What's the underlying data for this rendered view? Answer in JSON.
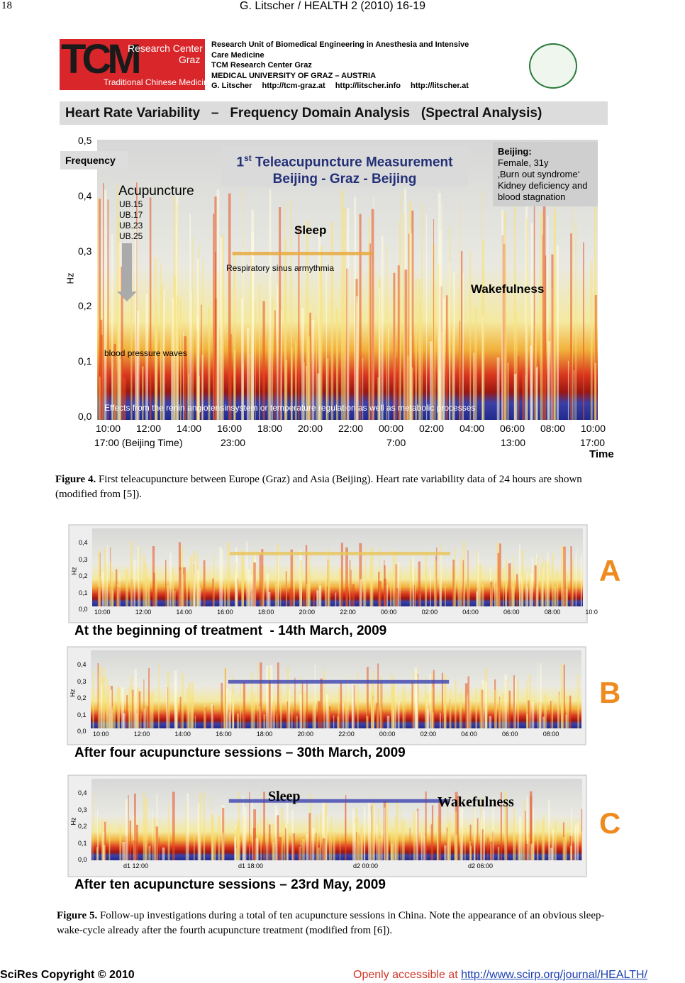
{
  "header": {
    "page_number": "18",
    "running_title": "G. Litscher / HEALTH 2 (2010) 16-19"
  },
  "figure4": {
    "banner": {
      "logo": "TCM",
      "center_line1": "Research Center",
      "center_line2": "Graz",
      "logo_subtitle": "Traditional Chinese Medicine",
      "lines": [
        "Research Unit of Biomedical Engineering in Anesthesia and Intensive",
        "Care Medicine",
        "TCM Research Center Graz",
        "MEDICAL UNIVERSITY OF GRAZ – AUSTRIA"
      ],
      "author": "G. Litscher",
      "links": [
        "http://tcm-graz.at",
        "http://litscher.info",
        "http://litscher.at"
      ]
    },
    "title": "Heart Rate Variability   –   Frequency Domain Analysis   (Spectral Analysis)",
    "frequency_label": "Frequency",
    "panel_title": {
      "number": "1",
      "suffix": "st",
      "line1": " Teleacupuncture Measurement",
      "line2": "Beijing - Graz - Beijing"
    },
    "patient": [
      "Beijing:",
      "Female, 31y",
      "‚Burn out syndrome‘",
      "Kidney deficiency and",
      "blood stagnation"
    ],
    "acupuncture": "Acupuncture",
    "points": [
      "UB.15",
      "UB.17",
      "UB.23",
      "UB.25"
    ],
    "sleep": "Sleep",
    "rsa": "Respiratory sinus armythmia",
    "wakefulness": "Wakefulness",
    "bp_waves": "blood pressure waves",
    "effects": "Effects from the renin angiotensinsystem or temperature regulation as well as metabolic processes",
    "y_axis_label": "Hz",
    "y_ticks": [
      "0,5",
      "0,4",
      "0,3",
      "0,2",
      "0,1",
      "0,0"
    ],
    "x_ticks": [
      "10:00",
      "12:00",
      "14:00",
      "16:00",
      "18:00",
      "20:00",
      "22:00",
      "00:00",
      "02:00",
      "04:00",
      "06:00",
      "08:00",
      "10:00"
    ],
    "beijing_ticks": [
      "17:00 (Beijing Time)",
      "23:00",
      "7:00",
      "13:00",
      "17:00"
    ],
    "x_axis_label": "Time",
    "caption_label": "Figure 4.",
    "caption": "First teleacupuncture between Europe (Graz) and Asia (Beijing). Heart rate variability data of 24 hours are shown (modified from [5])."
  },
  "figure5": {
    "panels": [
      {
        "letter": "A",
        "y_label": "Hz",
        "y_ticks": [
          "0,4",
          "0,3",
          "0,2",
          "0,1",
          "0,0"
        ],
        "x_ticks": [
          "10:00",
          "12:00",
          "14:00",
          "16:00",
          "18:00",
          "20:00",
          "22:00",
          "00:00",
          "02:00",
          "04:00",
          "06:00",
          "08:00",
          "10:0"
        ],
        "caption": "At the beginning of treatment  - 14th March, 2009"
      },
      {
        "letter": "B",
        "y_label": "Hz",
        "y_ticks": [
          "0,4",
          "0,3",
          "0,2",
          "0,1",
          "0,0"
        ],
        "x_ticks": [
          "10:00",
          "12:00",
          "14:00",
          "16:00",
          "18:00",
          "20:00",
          "22:00",
          "00:00",
          "02:00",
          "04:00",
          "06:00",
          "08:00"
        ],
        "caption": "After four acupuncture sessions – 30th March, 2009"
      },
      {
        "letter": "C",
        "y_label": "Hz",
        "y_ticks": [
          "0,4",
          "0,3",
          "0,2",
          "0,1",
          "0,0"
        ],
        "x_ticks": [
          "d1 12:00",
          "d1 18:00",
          "d2 00:00",
          "d2 06:00"
        ],
        "sleep": "Sleep",
        "wakefulness": "Wakefulness",
        "caption": "After ten acupuncture sessions – 23rd May, 2009"
      }
    ],
    "caption_label": "Figure 5.",
    "caption": "Follow-up investigations during a total of ten acupuncture sessions in China. Note the appearance of an obvious sleep-wake-cycle already after the fourth acupuncture treatment (modified from [6])."
  },
  "footer": {
    "copyright": "SciRes Copyright © 2010",
    "access": "Openly accessible at ",
    "url": "http://www.scirp.org/journal/HEALTH/"
  }
}
